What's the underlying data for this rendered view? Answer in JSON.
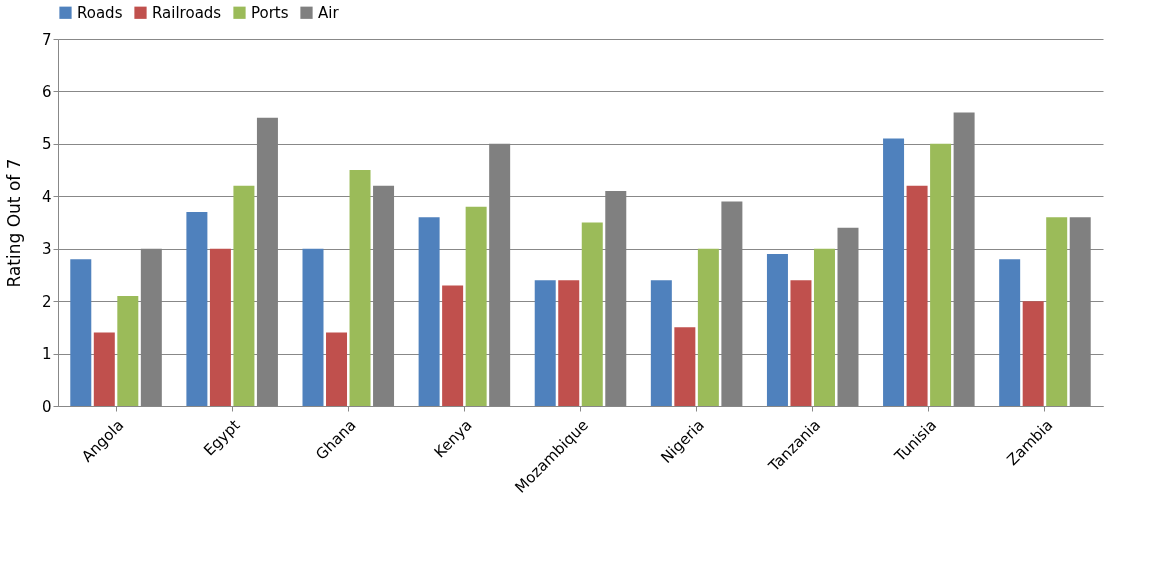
{
  "chart_data": {
    "type": "bar",
    "ylabel": "Rating Out of 7",
    "categories": [
      "Angola",
      "Egypt",
      "Ghana",
      "Kenya",
      "Mozambique",
      "Nigeria",
      "Tanzania",
      "Tunisia",
      "Zambia"
    ],
    "series": [
      {
        "name": "Roads",
        "color": "#4f81bd",
        "values": [
          2.8,
          3.7,
          3.0,
          3.6,
          2.4,
          2.4,
          2.9,
          5.1,
          2.8
        ]
      },
      {
        "name": "Railroads",
        "color": "#c0504d",
        "values": [
          1.4,
          3.0,
          1.4,
          2.3,
          2.4,
          1.5,
          2.4,
          4.2,
          2.0
        ]
      },
      {
        "name": "Ports",
        "color": "#9bbb59",
        "values": [
          2.1,
          4.2,
          4.5,
          3.8,
          3.5,
          3.0,
          3.0,
          5.0,
          3.6
        ]
      },
      {
        "name": "Air",
        "color": "#808080",
        "values": [
          3.0,
          5.5,
          4.2,
          5.0,
          4.1,
          3.9,
          3.4,
          5.6,
          3.6
        ]
      }
    ],
    "ylim": [
      0,
      7
    ],
    "yticks": [
      0,
      1,
      2,
      3,
      4,
      5,
      6,
      7
    ],
    "grid": "y",
    "legend": "top"
  }
}
